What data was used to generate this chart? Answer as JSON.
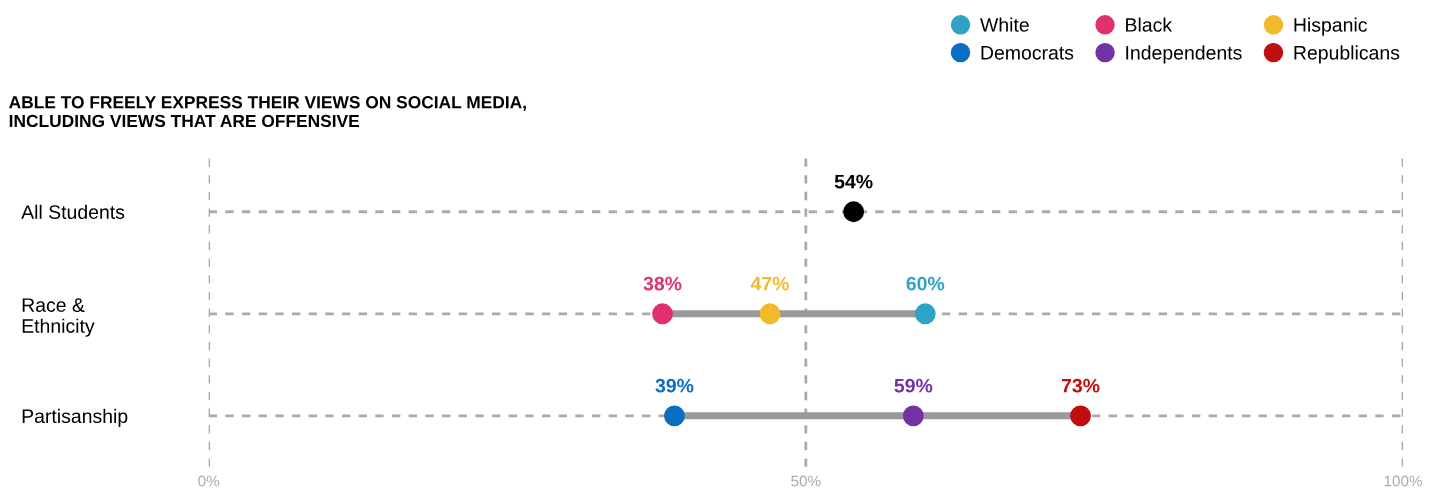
{
  "chart_data": {
    "type": "scatter",
    "orientation": "horizontal",
    "title": "ABLE TO FREELY EXPRESS THEIR VIEWS ON SOCIAL MEDIA,\nINCLUDING VIEWS THAT ARE OFFENSIVE",
    "categories": [
      "All Students",
      "Race &\nEthnicity",
      "Partisanship"
    ],
    "xlim": [
      0,
      100
    ],
    "xticks": [
      {
        "value": 0,
        "label": "0%"
      },
      {
        "value": 50,
        "label": "50%"
      },
      {
        "value": 100,
        "label": "100%"
      }
    ],
    "grid": true,
    "line_style": "dotted",
    "marker": "circle",
    "legend": "top right",
    "series": [
      {
        "color": "#000000",
        "values": [
          54,
          null,
          null
        ],
        "value_labels": [
          "54%",
          null,
          null
        ]
      },
      {
        "name": "White",
        "color": "#2ea3c7",
        "values": [
          null,
          60,
          null
        ],
        "value_labels": [
          null,
          "60%",
          null
        ]
      },
      {
        "name": "Black",
        "color": "#e0306f",
        "values": [
          null,
          38,
          null
        ],
        "value_labels": [
          null,
          "38%",
          null
        ]
      },
      {
        "name": "Hispanic",
        "color": "#f2b92b",
        "values": [
          null,
          47,
          null
        ],
        "value_labels": [
          null,
          "47%",
          null
        ]
      },
      {
        "name": "Democrats",
        "color": "#0a6fc2",
        "values": [
          null,
          null,
          39
        ],
        "value_labels": [
          null,
          null,
          "39%"
        ]
      },
      {
        "name": "Independents",
        "color": "#7232a4",
        "values": [
          null,
          null,
          59
        ],
        "value_labels": [
          null,
          null,
          "59%"
        ]
      },
      {
        "name": "Republicans",
        "color": "#c00d0d",
        "values": [
          null,
          null,
          73
        ],
        "value_labels": [
          null,
          null,
          "73%"
        ]
      }
    ]
  }
}
